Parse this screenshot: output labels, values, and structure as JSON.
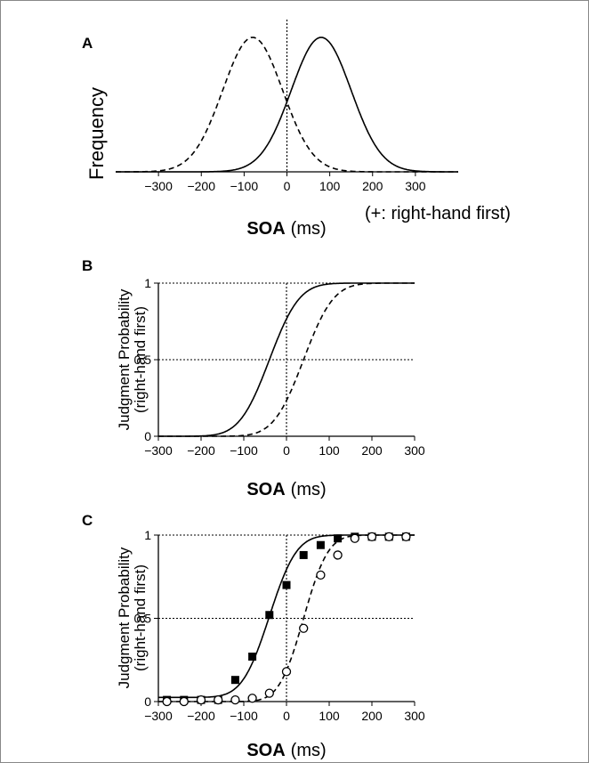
{
  "chart_data": [
    {
      "panel": "A",
      "type": "line",
      "ylabel": "Frequency",
      "xlabel_bold": "SOA",
      "xlabel_unit": "(ms)",
      "annotation": "(+: right-hand first)",
      "xlim": [
        -400,
        400
      ],
      "x_ticks": [
        -300,
        -200,
        -100,
        0,
        100,
        200,
        300
      ],
      "x_tick_labels": [
        "−300",
        "−200",
        "−100",
        "0",
        "100",
        "200",
        "300"
      ],
      "reference_line_x": 0,
      "series": [
        {
          "style": "dashed",
          "distribution": "gaussian",
          "mean": -80,
          "sd": 70,
          "peak_relative": 1.0
        },
        {
          "style": "solid",
          "distribution": "gaussian",
          "mean": 80,
          "sd": 70,
          "peak_relative": 1.0
        }
      ]
    },
    {
      "panel": "B",
      "type": "line",
      "ylabel": [
        "Judgment Probability",
        "(right-hand first)"
      ],
      "xlabel_bold": "SOA",
      "xlabel_unit": "(ms)",
      "xlim": [
        -300,
        300
      ],
      "ylim": [
        0,
        1
      ],
      "x_ticks": [
        -300,
        -200,
        -100,
        0,
        100,
        200,
        300
      ],
      "x_tick_labels": [
        "−300",
        "−200",
        "−100",
        "0",
        "100",
        "200",
        "300"
      ],
      "y_ticks": [
        0,
        0.5,
        1
      ],
      "y_tick_labels": [
        "0",
        "0.5",
        "1"
      ],
      "reference_lines": {
        "x": [
          0
        ],
        "y": [
          0.5,
          1
        ]
      },
      "series": [
        {
          "style": "solid",
          "function": "cumulative-gaussian",
          "pse": -40,
          "sd": 55
        },
        {
          "style": "dashed",
          "function": "cumulative-gaussian",
          "pse": 40,
          "sd": 55
        }
      ]
    },
    {
      "panel": "C",
      "type": "line",
      "ylabel": [
        "Judgment Probability",
        "(right-hand first)"
      ],
      "xlabel_bold": "SOA",
      "xlabel_unit": "(ms)",
      "xlim": [
        -300,
        300
      ],
      "ylim": [
        0,
        1
      ],
      "x_ticks": [
        -300,
        -200,
        -100,
        0,
        100,
        200,
        300
      ],
      "x_tick_labels": [
        "−300",
        "−200",
        "−100",
        "0",
        "100",
        "200",
        "300"
      ],
      "y_ticks": [
        0,
        0.5,
        1
      ],
      "y_tick_labels": [
        "0",
        "0.5",
        "1"
      ],
      "reference_lines": {
        "x": [
          0
        ],
        "y": [
          0.5,
          1
        ]
      },
      "series": [
        {
          "style": "solid",
          "marker": "filled-square",
          "fit": {
            "function": "cumulative-gaussian",
            "pse": -40,
            "sd": 50,
            "floor": 0.025
          },
          "x": [
            -280,
            -240,
            -200,
            -160,
            -120,
            -80,
            -40,
            0,
            40,
            80,
            120,
            160,
            200,
            240,
            280
          ],
          "y": [
            0.01,
            0.01,
            0.01,
            0.01,
            0.13,
            0.27,
            0.52,
            0.7,
            0.88,
            0.94,
            0.98,
            0.99,
            0.99,
            0.99,
            0.99
          ]
        },
        {
          "style": "dashed",
          "marker": "open-circle",
          "fit": {
            "function": "cumulative-gaussian",
            "pse": 40,
            "sd": 45,
            "floor": 0.0
          },
          "x": [
            -280,
            -240,
            -200,
            -160,
            -120,
            -80,
            -40,
            0,
            40,
            80,
            120,
            160,
            200,
            240,
            280
          ],
          "y": [
            0.0,
            0.0,
            0.01,
            0.01,
            0.01,
            0.02,
            0.05,
            0.18,
            0.44,
            0.76,
            0.88,
            0.98,
            0.99,
            0.99,
            0.99
          ]
        }
      ]
    }
  ]
}
